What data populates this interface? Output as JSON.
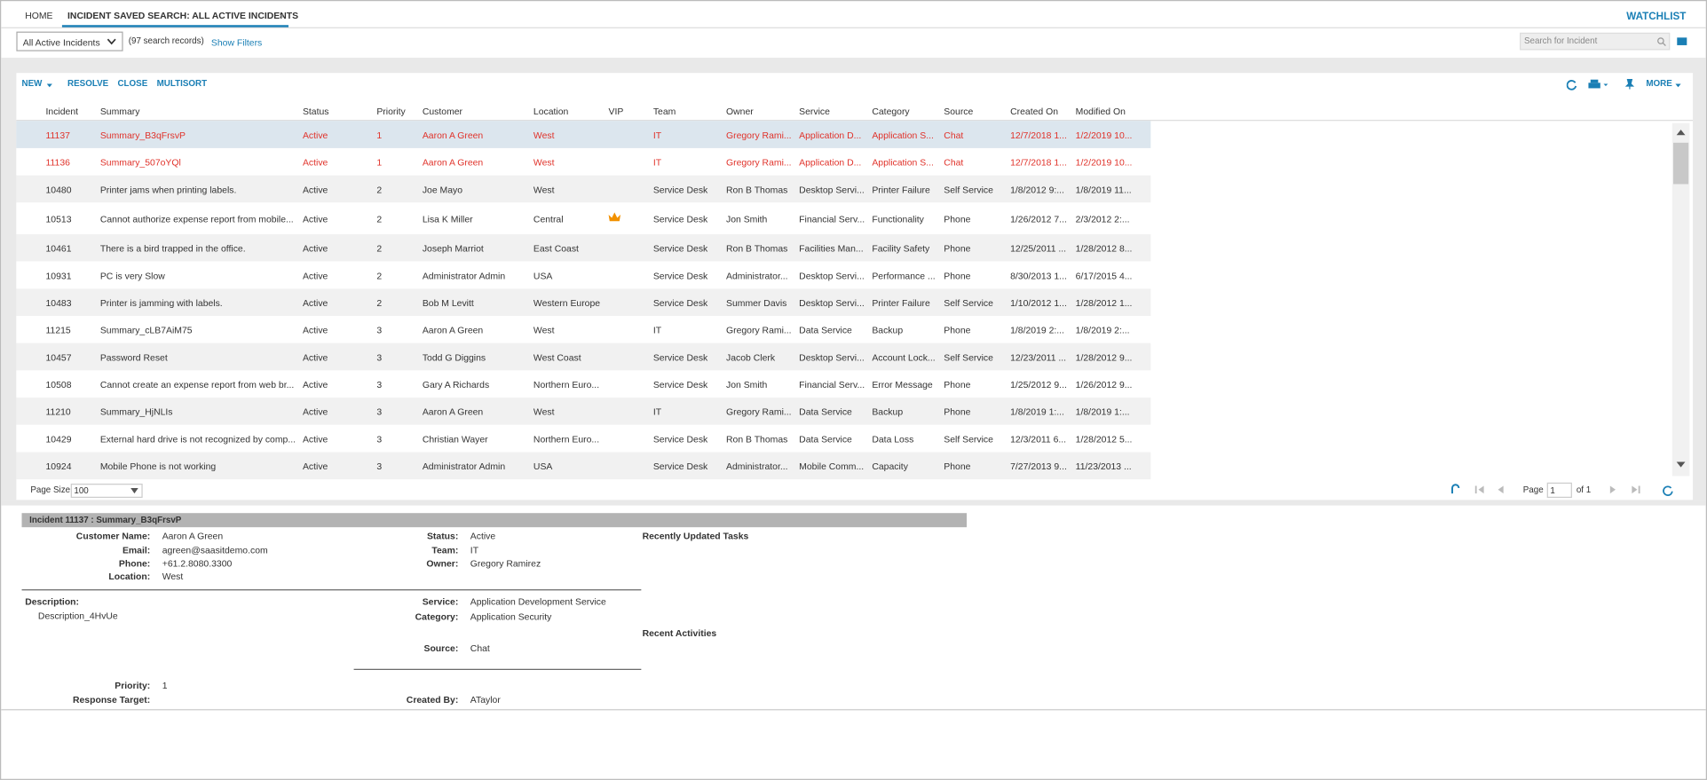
{
  "tabs": [
    "HOME",
    "INCIDENT SAVED SEARCH: ALL ACTIVE INCIDENTS"
  ],
  "watchlist": "WATCHLIST",
  "search_selector": "All Active Incidents",
  "record_count": "(97 search records)",
  "show_filters": "Show Filters",
  "search_placeholder": "Search for Incident",
  "toolbar": {
    "left": [
      "NEW",
      "RESOLVE",
      "CLOSE",
      "MULTISORT"
    ],
    "more": "MORE"
  },
  "grid": {
    "columns": [
      "Incident",
      "Summary",
      "Status",
      "Priority",
      "Customer",
      "Location",
      "VIP",
      "Team",
      "Owner",
      "Service",
      "Category",
      "Source",
      "Created On",
      "Modified On"
    ],
    "rows": [
      {
        "color": "#e0322a",
        "cells": [
          "11137",
          "Summary_B3qFrsvP",
          "Active",
          "1",
          "Aaron A Green",
          "West",
          null,
          "IT",
          "Gregory Rami...",
          "Application D...",
          "Application S...",
          "Chat",
          "12/7/2018 1...",
          "1/2/2019 10..."
        ]
      },
      {
        "color": "#e0322a",
        "cells": [
          "11136",
          "Summary_507oYQl",
          "Active",
          "1",
          "Aaron A Green",
          "West",
          null,
          "IT",
          "Gregory Rami...",
          "Application D...",
          "Application S...",
          "Chat",
          "12/7/2018 1...",
          "1/2/2019 10..."
        ]
      },
      {
        "cells": [
          "10480",
          "Printer jams when printing labels.",
          "Active",
          "2",
          "Joe Mayo",
          "West",
          null,
          "Service Desk",
          "Ron B Thomas",
          "Desktop Servi...",
          "Printer Failure",
          "Self Service",
          "1/8/2012 9:...",
          "1/8/2019 11..."
        ]
      },
      {
        "vip": true,
        "cells": [
          "10513",
          "Cannot authorize expense report from mobile...",
          "Active",
          "2",
          "Lisa K Miller",
          "Central",
          null,
          "Service Desk",
          "Jon Smith",
          "Financial Serv...",
          "Functionality",
          "Phone",
          "1/26/2012 7...",
          "2/3/2012 2:..."
        ]
      },
      {
        "cells": [
          "10461",
          "There is a bird trapped in the office.",
          "Active",
          "2",
          "Joseph Marriot",
          "East Coast",
          null,
          "Service Desk",
          "Ron B Thomas",
          "Facilities Man...",
          "Facility Safety",
          "Phone",
          "12/25/2011 ...",
          "1/28/2012 8..."
        ]
      },
      {
        "cells": [
          "10931",
          "PC is very Slow",
          "Active",
          "2",
          "Administrator Admin",
          "USA",
          null,
          "Service Desk",
          "Administrator...",
          "Desktop Servi...",
          "Performance ...",
          "Phone",
          "8/30/2013 1...",
          "6/17/2015 4..."
        ]
      },
      {
        "cells": [
          "10483",
          "Printer is jamming with labels.",
          "Active",
          "2",
          "Bob M Levitt",
          "Western Europe",
          null,
          "Service Desk",
          "Summer Davis",
          "Desktop Servi...",
          "Printer Failure",
          "Self Service",
          "1/10/2012 1...",
          "1/28/2012 1..."
        ]
      },
      {
        "cells": [
          "11215",
          "Summary_cLB7AiM75",
          "Active",
          "3",
          "Aaron A Green",
          "West",
          null,
          "IT",
          "Gregory Rami...",
          "Data Service",
          "Backup",
          "Phone",
          "1/8/2019 2:...",
          "1/8/2019 2:..."
        ]
      },
      {
        "cells": [
          "10457",
          "Password Reset",
          "Active",
          "3",
          "Todd G Diggins",
          "West Coast",
          null,
          "Service Desk",
          "Jacob Clerk",
          "Desktop Servi...",
          "Account Lock...",
          "Self Service",
          "12/23/2011 ...",
          "1/28/2012 9..."
        ]
      },
      {
        "cells": [
          "10508",
          "Cannot create an expense report from web br...",
          "Active",
          "3",
          "Gary A Richards",
          "Northern Euro...",
          null,
          "Service Desk",
          "Jon Smith",
          "Financial Serv...",
          "Error Message",
          "Phone",
          "1/25/2012 9...",
          "1/26/2012 9..."
        ]
      },
      {
        "cells": [
          "11210",
          "Summary_HjNLIs",
          "Active",
          "3",
          "Aaron A Green",
          "West",
          null,
          "IT",
          "Gregory Rami...",
          "Data Service",
          "Backup",
          "Phone",
          "1/8/2019 1:...",
          "1/8/2019 1:..."
        ]
      },
      {
        "cells": [
          "10429",
          "External hard drive is not recognized by comp...",
          "Active",
          "3",
          "Christian Wayer",
          "Northern Euro...",
          null,
          "Service Desk",
          "Ron B Thomas",
          "Data Service",
          "Data Loss",
          "Self Service",
          "12/3/2011 6...",
          "1/28/2012 5..."
        ]
      },
      {
        "cells": [
          "10924",
          "Mobile Phone is not working",
          "Active",
          "3",
          "Administrator Admin",
          "USA",
          null,
          "Service Desk",
          "Administrator...",
          "Mobile Comm...",
          "Capacity",
          "Phone",
          "7/27/2013 9...",
          "11/23/2013 ..."
        ]
      }
    ]
  },
  "pager": {
    "page_size_label": "Page Size",
    "page_size": "100",
    "page_label": "Page",
    "page": "1",
    "of": "of 1"
  },
  "detail": {
    "title": "Incident 11137 : Summary_B3qFrsvP",
    "contact": [
      {
        "label": "Customer Name:",
        "value": "Aaron A Green"
      },
      {
        "label": "Email:",
        "value": "agreen@saasitdemo.com"
      },
      {
        "label": "Phone:",
        "value": "+61.2.8080.3300"
      },
      {
        "label": "Location:",
        "value": "West"
      }
    ],
    "status": [
      {
        "label": "Status:",
        "value": "Active"
      },
      {
        "label": "Team:",
        "value": "IT"
      },
      {
        "label": "Owner:",
        "value": "Gregory Ramirez"
      }
    ],
    "description_label": "Description:",
    "description": "Description_4HvUe",
    "service": [
      {
        "label": "Service:",
        "value": "Application Development Service"
      },
      {
        "label": "Category:",
        "value": "Application Security"
      }
    ],
    "source": {
      "label": "Source:",
      "value": "Chat"
    },
    "priority": {
      "label": "Priority:",
      "value": "1"
    },
    "response_target": {
      "label": "Response Target:"
    },
    "created_by": {
      "label": "Created By:",
      "value": "ATaylor"
    },
    "recent_tasks": "Recently Updated Tasks",
    "recent_activities": "Recent Activities"
  }
}
